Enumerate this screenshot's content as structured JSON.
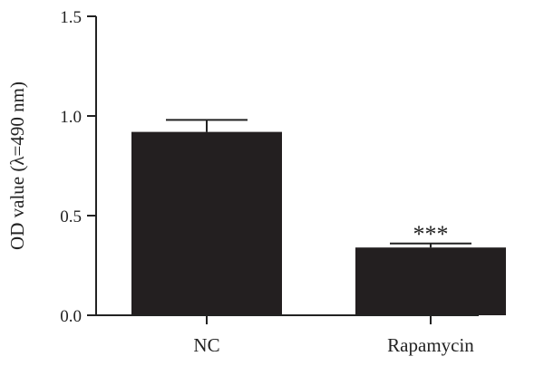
{
  "chart_data": {
    "type": "bar",
    "title": "",
    "xlabel": "",
    "ylabel": "OD value (λ=490 nm)",
    "ylim": [
      0,
      1.5
    ],
    "yticks": [
      "0.0",
      "0.5",
      "1.0",
      "1.5"
    ],
    "categories": [
      "NC",
      "Rapamycin"
    ],
    "values": [
      0.92,
      0.34
    ],
    "errors": [
      0.06,
      0.02
    ],
    "annotations": [
      "",
      "***"
    ],
    "bar_color": "#231f20",
    "grid": false,
    "legend": "none"
  }
}
